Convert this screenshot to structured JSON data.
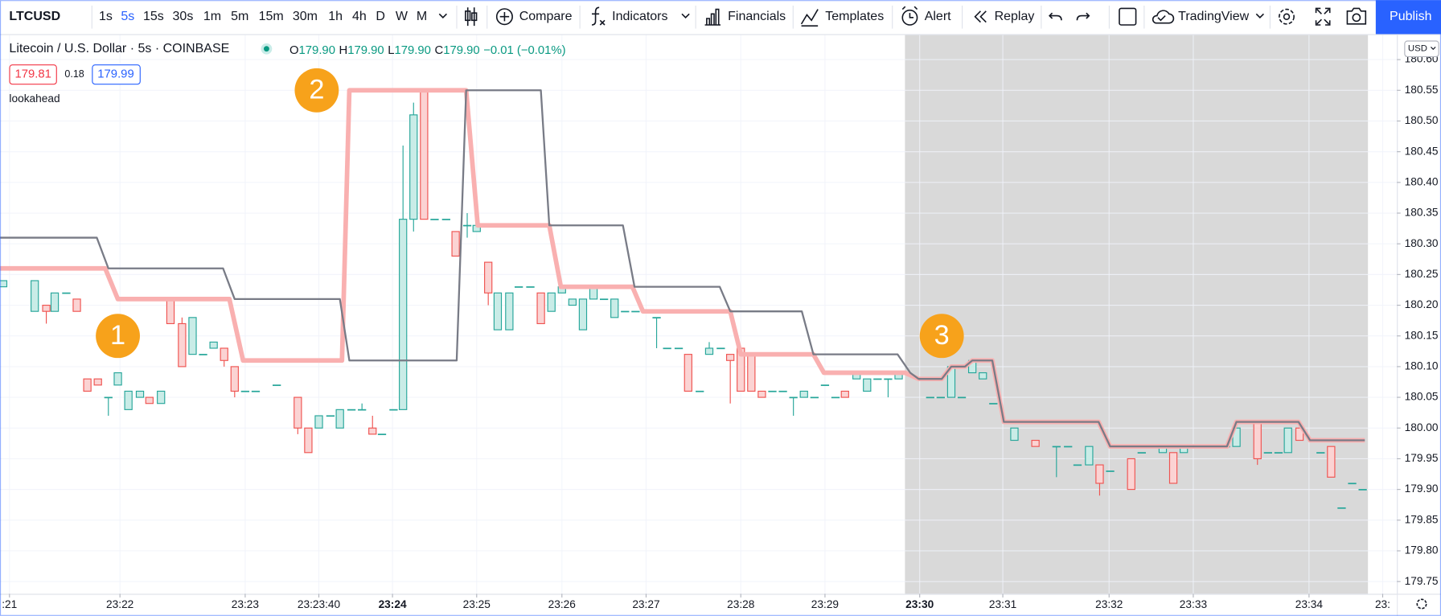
{
  "toolbar": {
    "symbol": "LTCUSD",
    "intervals": [
      "1s",
      "5s",
      "15s",
      "30s",
      "1m",
      "5m",
      "15m",
      "30m",
      "1h",
      "4h",
      "D",
      "W",
      "M"
    ],
    "active_interval": 1,
    "compare": "Compare",
    "indicators": "Indicators",
    "financials": "Financials",
    "templates": "Templates",
    "alert": "Alert",
    "replay": "Replay",
    "layout": "TradingView",
    "publish": "Publish"
  },
  "legend": {
    "title": "Litecoin / U.S. Dollar · 5s · COINBASE",
    "ohlc": [
      [
        "O",
        "179.90"
      ],
      [
        "H",
        "179.90"
      ],
      [
        "L",
        "179.90"
      ],
      [
        "C",
        "179.90"
      ]
    ],
    "change": "−0.01 (−0.01%)",
    "bid": "179.81",
    "spread": "0.18",
    "ask": "179.99",
    "indicator": "lookahead"
  },
  "chart_data": {
    "type": "candlestick",
    "currency": "USD",
    "up_color": "#26a69a",
    "down_color": "#ef5350",
    "candles": [
      [
        0.3,
        180.23,
        180.24,
        180.23,
        180.24
      ],
      [
        2.3,
        180.26,
        180.26,
        180.26,
        180.26
      ],
      [
        3.3,
        180.19,
        180.24,
        180.19,
        180.24
      ],
      [
        4.4,
        180.2,
        180.2,
        180.17,
        180.19
      ],
      [
        5.2,
        180.19,
        180.22,
        180.19,
        180.22
      ],
      [
        6.3,
        180.22,
        180.22,
        180.22,
        180.22
      ],
      [
        7.3,
        180.21,
        180.21,
        180.19,
        180.19
      ],
      [
        8.3,
        180.08,
        180.08,
        180.06,
        180.06
      ],
      [
        9.3,
        180.08,
        180.08,
        180.07,
        180.07
      ],
      [
        10.3,
        180.05,
        180.05,
        180.02,
        180.05
      ],
      [
        11.2,
        180.07,
        180.09,
        180.07,
        180.09
      ],
      [
        12.2,
        180.03,
        180.06,
        180.03,
        180.06
      ],
      [
        13.3,
        180.05,
        180.06,
        180.05,
        180.06
      ],
      [
        14.2,
        180.05,
        180.05,
        180.04,
        180.04
      ],
      [
        15.3,
        180.04,
        180.06,
        180.04,
        180.06
      ],
      [
        16.2,
        180.21,
        180.21,
        180.17,
        180.17
      ],
      [
        17.3,
        180.17,
        180.18,
        180.1,
        180.1
      ],
      [
        18.3,
        180.12,
        180.18,
        180.12,
        180.18
      ],
      [
        19.3,
        180.12,
        180.12,
        180.12,
        180.12
      ],
      [
        20.3,
        180.13,
        180.14,
        180.13,
        180.14
      ],
      [
        21.3,
        180.13,
        180.13,
        180.1,
        180.11
      ],
      [
        22.3,
        180.1,
        180.1,
        180.05,
        180.06
      ],
      [
        23.3,
        180.06,
        180.06,
        180.06,
        180.06
      ],
      [
        24.3,
        180.06,
        180.06,
        180.06,
        180.06
      ],
      [
        25.3,
        180.11,
        180.11,
        180.11,
        180.11
      ],
      [
        26.3,
        180.07,
        180.07,
        180.07,
        180.07
      ],
      [
        27.3,
        180.11,
        180.11,
        180.11,
        180.11
      ],
      [
        28.3,
        180.05,
        180.05,
        179.99,
        180.0
      ],
      [
        29.3,
        180.0,
        180.0,
        179.96,
        179.96
      ],
      [
        30.3,
        180.0,
        180.02,
        180.0,
        180.02
      ],
      [
        31.4,
        180.02,
        180.02,
        180.02,
        180.02
      ],
      [
        32.3,
        180.0,
        180.03,
        180.0,
        180.03
      ],
      [
        33.4,
        180.03,
        180.03,
        180.03,
        180.03
      ],
      [
        34.4,
        180.03,
        180.04,
        180.03,
        180.03
      ],
      [
        35.4,
        180.0,
        180.02,
        179.99,
        179.99
      ],
      [
        36.3,
        179.99,
        179.99,
        179.99,
        179.99
      ],
      [
        37.4,
        180.03,
        180.03,
        180.03,
        180.03
      ],
      [
        38.3,
        180.03,
        180.46,
        180.03,
        180.34
      ],
      [
        39.3,
        180.34,
        180.53,
        180.32,
        180.51
      ],
      [
        40.3,
        180.55,
        180.55,
        180.34,
        180.34
      ],
      [
        41.3,
        180.34,
        180.34,
        180.34,
        180.34
      ],
      [
        42.4,
        180.34,
        180.34,
        180.34,
        180.34
      ],
      [
        43.3,
        180.32,
        180.32,
        180.28,
        180.28
      ],
      [
        44.4,
        180.33,
        180.35,
        180.31,
        180.33
      ],
      [
        45.3,
        180.32,
        180.33,
        180.32,
        180.33
      ],
      [
        46.4,
        180.27,
        180.27,
        180.2,
        180.22
      ],
      [
        47.3,
        180.16,
        180.22,
        180.16,
        180.22
      ],
      [
        48.4,
        180.16,
        180.22,
        180.16,
        180.22
      ],
      [
        49.3,
        180.23,
        180.23,
        180.23,
        180.23
      ],
      [
        50.4,
        180.23,
        180.23,
        180.23,
        180.23
      ],
      [
        51.4,
        180.22,
        180.22,
        180.17,
        180.17
      ],
      [
        52.4,
        180.19,
        180.22,
        180.19,
        180.22
      ],
      [
        53.4,
        180.22,
        180.23,
        180.22,
        180.23
      ],
      [
        54.4,
        180.2,
        180.21,
        180.2,
        180.21
      ],
      [
        55.4,
        180.16,
        180.21,
        180.16,
        180.21
      ],
      [
        56.4,
        180.21,
        180.23,
        180.21,
        180.23
      ],
      [
        57.4,
        180.21,
        180.21,
        180.21,
        180.21
      ],
      [
        58.4,
        180.18,
        180.21,
        180.18,
        180.21
      ],
      [
        59.4,
        180.19,
        180.19,
        180.19,
        180.19
      ],
      [
        60.4,
        180.19,
        180.19,
        180.19,
        180.19
      ],
      [
        61.4,
        180.19,
        180.19,
        180.19,
        180.19
      ],
      [
        62.4,
        180.18,
        180.18,
        180.13,
        180.18
      ],
      [
        63.4,
        180.13,
        180.13,
        180.13,
        180.13
      ],
      [
        64.5,
        180.13,
        180.13,
        180.13,
        180.13
      ],
      [
        65.4,
        180.12,
        180.12,
        180.06,
        180.06
      ],
      [
        66.5,
        180.06,
        180.06,
        180.06,
        180.06
      ],
      [
        67.4,
        180.12,
        180.14,
        180.12,
        180.13
      ],
      [
        68.5,
        180.13,
        180.13,
        180.13,
        180.13
      ],
      [
        69.4,
        180.12,
        180.12,
        180.04,
        180.11
      ],
      [
        70.4,
        180.13,
        180.13,
        180.06,
        180.06
      ],
      [
        71.4,
        180.12,
        180.12,
        180.06,
        180.06
      ],
      [
        72.4,
        180.06,
        180.06,
        180.05,
        180.05
      ],
      [
        73.4,
        180.06,
        180.06,
        180.06,
        180.06
      ],
      [
        74.4,
        180.06,
        180.06,
        180.06,
        180.06
      ],
      [
        75.4,
        180.05,
        180.05,
        180.02,
        180.05
      ],
      [
        76.4,
        180.05,
        180.06,
        180.05,
        180.06
      ],
      [
        77.4,
        180.05,
        180.05,
        180.05,
        180.05
      ],
      [
        78.4,
        180.07,
        180.07,
        180.07,
        180.07
      ],
      [
        79.4,
        180.05,
        180.05,
        180.05,
        180.05
      ],
      [
        80.3,
        180.06,
        180.06,
        180.05,
        180.05
      ],
      [
        81.4,
        180.08,
        180.09,
        180.08,
        180.09
      ],
      [
        82.4,
        180.06,
        180.08,
        180.06,
        180.08
      ],
      [
        83.4,
        180.08,
        180.08,
        180.08,
        180.08
      ],
      [
        84.4,
        180.08,
        180.08,
        180.05,
        180.08
      ],
      [
        85.4,
        180.08,
        180.09,
        180.08,
        180.09
      ],
      [
        88.4,
        180.05,
        180.05,
        180.05,
        180.05
      ],
      [
        89.4,
        180.05,
        180.05,
        180.05,
        180.05
      ],
      [
        90.4,
        180.05,
        180.1,
        180.05,
        180.1
      ],
      [
        91.4,
        180.05,
        180.05,
        180.05,
        180.05
      ],
      [
        92.4,
        180.09,
        180.11,
        180.09,
        180.11
      ],
      [
        93.4,
        180.08,
        180.09,
        180.08,
        180.09
      ],
      [
        94.4,
        180.04,
        180.04,
        180.04,
        180.04
      ],
      [
        96.4,
        179.98,
        180.0,
        179.98,
        180.0
      ],
      [
        98.4,
        179.98,
        179.98,
        179.97,
        179.97
      ],
      [
        100.4,
        179.97,
        179.97,
        179.92,
        179.97
      ],
      [
        101.5,
        179.97,
        179.97,
        179.97,
        179.97
      ],
      [
        102.4,
        179.94,
        179.94,
        179.94,
        179.94
      ],
      [
        103.5,
        179.94,
        179.97,
        179.94,
        179.97
      ],
      [
        104.5,
        179.94,
        179.94,
        179.89,
        179.91
      ],
      [
        105.5,
        179.93,
        179.93,
        179.93,
        179.93
      ],
      [
        106.5,
        179.97,
        179.97,
        179.97,
        179.97
      ],
      [
        107.5,
        179.95,
        179.95,
        179.9,
        179.9
      ],
      [
        108.5,
        179.96,
        179.96,
        179.96,
        179.96
      ],
      [
        110.5,
        179.96,
        179.97,
        179.96,
        179.97
      ],
      [
        111.5,
        179.96,
        179.96,
        179.91,
        179.91
      ],
      [
        112.5,
        179.96,
        179.97,
        179.96,
        179.97
      ],
      [
        114.5,
        179.97,
        179.97,
        179.97,
        179.97
      ],
      [
        116.5,
        179.97,
        179.97,
        179.97,
        179.97
      ],
      [
        117.5,
        179.97,
        180.0,
        179.97,
        180.0
      ],
      [
        119.5,
        180.01,
        180.01,
        179.94,
        179.95
      ],
      [
        120.5,
        179.96,
        179.96,
        179.96,
        179.96
      ],
      [
        121.5,
        179.96,
        179.96,
        179.96,
        179.96
      ],
      [
        122.4,
        179.96,
        180.0,
        179.96,
        180.0
      ],
      [
        123.5,
        180.0,
        180.0,
        179.98,
        179.98
      ],
      [
        125.5,
        179.96,
        179.96,
        179.96,
        179.96
      ],
      [
        126.5,
        179.97,
        179.97,
        179.92,
        179.92
      ],
      [
        127.5,
        179.87,
        179.87,
        179.87,
        179.87
      ],
      [
        128.5,
        179.91,
        179.91,
        179.91,
        179.91
      ],
      [
        129.5,
        179.9,
        179.9,
        179.9,
        179.9
      ]
    ],
    "lines": [
      {
        "color": "#f9b0b0",
        "width": 5,
        "x": [
          0,
          10.0,
          11.2,
          21.8,
          23.1,
          32.5,
          33.2,
          44.3,
          45.4,
          52.2,
          53.3,
          60.1,
          61.1,
          69.4,
          70.4,
          77.3,
          78.3,
          86.0,
          87.3,
          89.5,
          90.4,
          91.7,
          92.4,
          94.3,
          95.4,
          104.4,
          105.5,
          116.6,
          117.5,
          123.4,
          124.5,
          129.7
        ],
        "values": [
          180.26,
          180.26,
          180.21,
          180.21,
          180.11,
          180.11,
          180.55,
          180.55,
          180.33,
          180.33,
          180.23,
          180.23,
          180.19,
          180.19,
          180.12,
          180.12,
          180.09,
          180.09,
          180.08,
          180.08,
          180.1,
          180.1,
          180.11,
          180.11,
          180.01,
          180.01,
          179.97,
          179.97,
          180.01,
          180.01,
          179.98,
          179.98
        ]
      },
      {
        "color": "#787b86",
        "width": 2,
        "x": [
          0,
          9.2,
          10.3,
          21.2,
          22.3,
          32.3,
          33.2,
          43.4,
          44.3,
          51.4,
          52.2,
          59.2,
          60.3,
          68.4,
          69.4,
          76.2,
          77.3,
          85.3,
          86.5,
          87.3,
          89.5,
          90.4,
          91.7,
          92.4,
          94.3,
          95.4,
          104.4,
          105.5,
          116.6,
          117.5,
          123.4,
          124.5,
          129.7
        ],
        "values": [
          180.31,
          180.31,
          180.26,
          180.26,
          180.21,
          180.21,
          180.11,
          180.11,
          180.55,
          180.55,
          180.33,
          180.33,
          180.23,
          180.23,
          180.19,
          180.19,
          180.12,
          180.12,
          180.09,
          180.08,
          180.08,
          180.1,
          180.1,
          180.11,
          180.11,
          180.01,
          180.01,
          179.97,
          179.97,
          180.01,
          180.01,
          179.98,
          179.98
        ]
      }
    ],
    "shaded_range": [
      86.0,
      130.0
    ],
    "annotations": [
      {
        "text": "1",
        "x": 11.2,
        "y": 180.15
      },
      {
        "text": "2",
        "x": 30.1,
        "y": 180.55
      },
      {
        "text": "3",
        "x": 89.5,
        "y": 180.15
      }
    ],
    "xlim": [
      0,
      132.75
    ],
    "ylim": [
      179.73,
      180.64
    ],
    "grid": true,
    "xticks": [
      {
        "value": 0.9,
        "label": ":21"
      },
      {
        "value": 11.4,
        "label": "23:22"
      },
      {
        "value": 23.3,
        "label": "23:23"
      },
      {
        "value": 30.3,
        "label": "23:23:40"
      },
      {
        "value": 37.3,
        "label": "23:24"
      },
      {
        "value": 45.3,
        "label": "23:25"
      },
      {
        "value": 53.4,
        "label": "23:26"
      },
      {
        "value": 61.4,
        "label": "23:27"
      },
      {
        "value": 70.4,
        "label": "23:28"
      },
      {
        "value": 78.4,
        "label": "23:29"
      },
      {
        "value": 87.4,
        "label": "23:30"
      },
      {
        "value": 95.3,
        "label": "23:31"
      },
      {
        "value": 105.4,
        "label": "23:32"
      },
      {
        "value": 113.4,
        "label": "23:33"
      },
      {
        "value": 124.4,
        "label": "23:34"
      },
      {
        "value": 131.4,
        "label": "23:"
      }
    ],
    "xticks_bold": [
      4,
      10
    ],
    "yticks": [
      179.75,
      {
        "value": 179.8,
        "label": "179.80"
      },
      179.85,
      {
        "value": 179.9,
        "label": "179.90"
      },
      179.95,
      {
        "value": 180,
        "label": "180.00"
      },
      180.05,
      {
        "value": 180.1,
        "label": "180.10"
      },
      180.15,
      {
        "value": 180.2,
        "label": "180.20"
      },
      180.25,
      {
        "value": 180.3,
        "label": "180.30"
      },
      180.35,
      {
        "value": 180.4,
        "label": "180.40"
      },
      180.45,
      {
        "value": 180.5,
        "label": "180.50"
      },
      180.55,
      {
        "value": 180.6,
        "label": "180.60"
      }
    ]
  }
}
